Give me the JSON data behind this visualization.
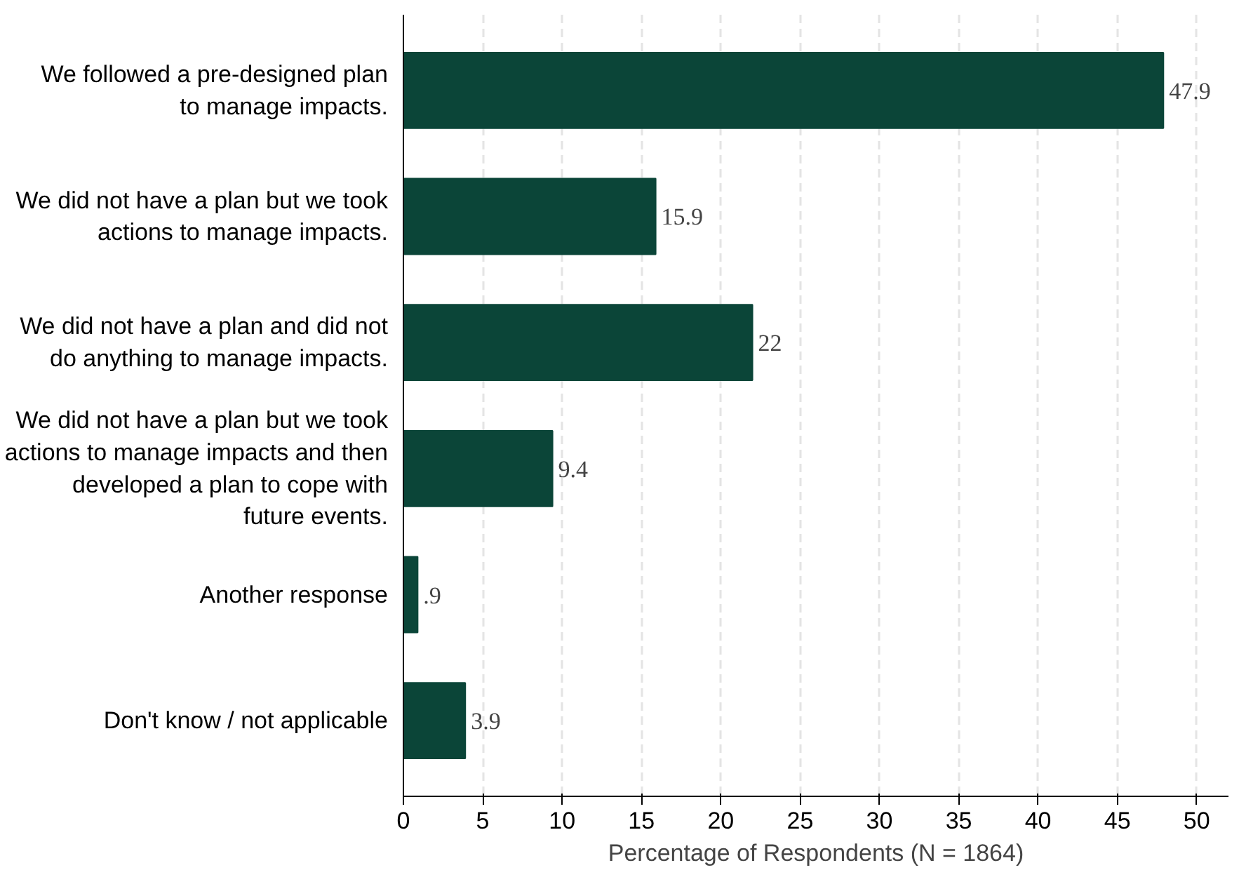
{
  "chart_data": {
    "type": "bar",
    "orientation": "horizontal",
    "xlabel": "Percentage of Respondents (N = 1864)",
    "categories": [
      "We followed a pre-designed plan\nto manage impacts.",
      "We did not have a plan but we took\nactions to manage impacts.",
      "We did not have a plan and did not\ndo anything to manage impacts.",
      "We did not have a plan but we took\nactions to manage impacts and then\ndeveloped a plan to cope with\nfuture events.",
      "Another response",
      "Don't know / not applicable"
    ],
    "values": [
      47.9,
      15.9,
      22,
      9.4,
      0.9,
      3.9
    ],
    "value_labels": [
      "47.9",
      "15.9",
      "22",
      "9.4",
      ".9",
      "3.9"
    ],
    "color": "#0b4538",
    "xlim": [
      0,
      52
    ],
    "xticks": [
      0,
      5,
      10,
      15,
      20,
      25,
      30,
      35,
      40,
      45,
      50
    ],
    "grid": "x"
  }
}
